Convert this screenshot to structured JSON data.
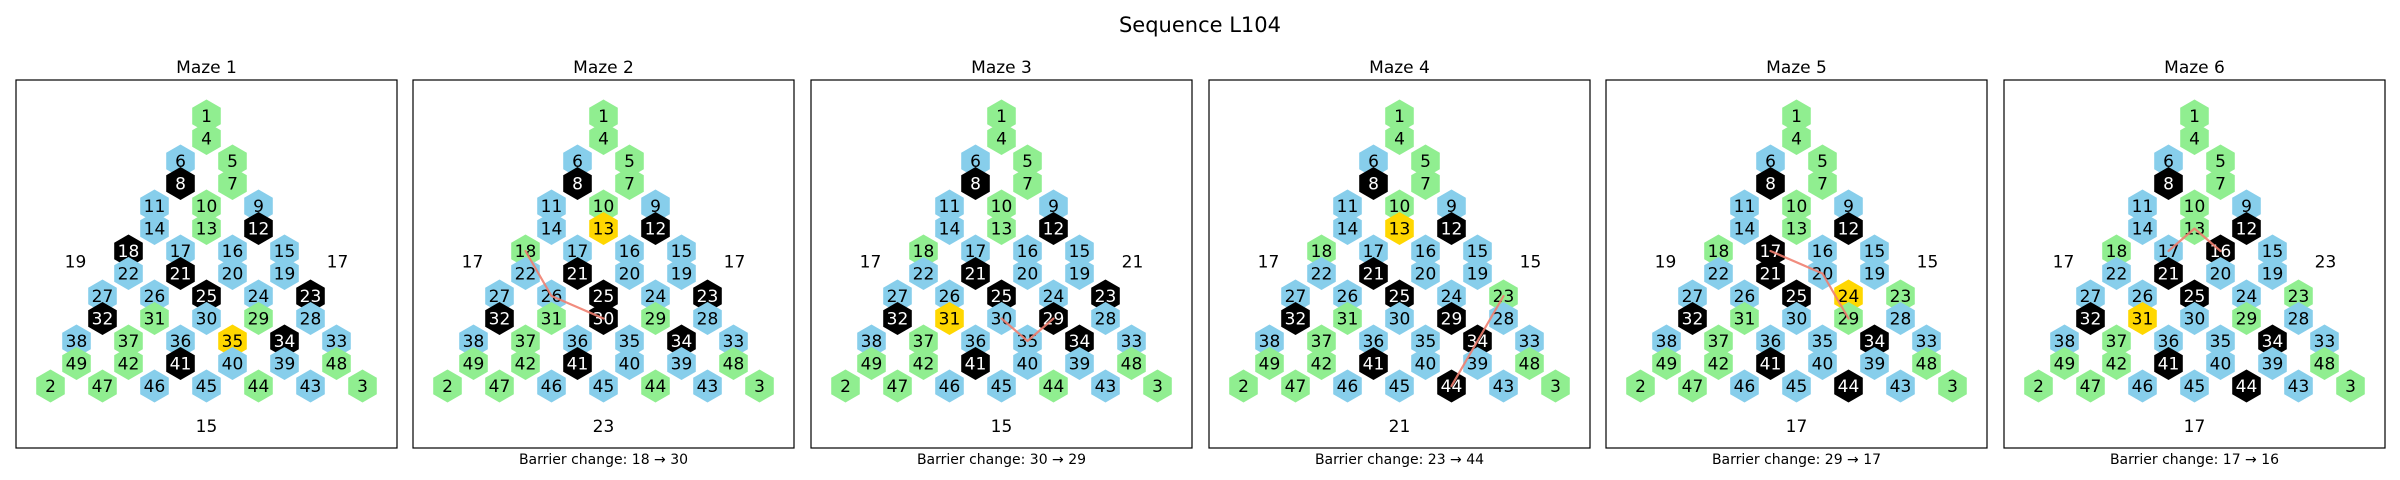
{
  "title": "Sequence L104",
  "colors": {
    "open_green": "#90EE90",
    "blue": "#87CEEB",
    "barrier_black": "#000000",
    "highlight_yellow": "#FFD700",
    "path_red": "#F08070"
  },
  "node_ids": [
    1,
    4,
    5,
    6,
    7,
    8,
    9,
    10,
    11,
    12,
    13,
    14,
    15,
    16,
    17,
    18,
    19,
    20,
    21,
    22,
    23,
    24,
    25,
    26,
    27,
    28,
    29,
    30,
    31,
    32,
    33,
    34,
    35,
    36,
    37,
    38,
    39,
    40,
    41,
    42,
    43,
    44,
    45,
    46,
    47,
    48,
    49,
    2,
    3
  ],
  "mazes": [
    {
      "title": "Maze 1",
      "left_label": "19",
      "right_label": "17",
      "bottom_label": "15",
      "caption": "",
      "yellow": [
        35
      ],
      "black": [
        8,
        12,
        18,
        21,
        23,
        25,
        32,
        34,
        41
      ],
      "path": []
    },
    {
      "title": "Maze 2",
      "left_label": "17",
      "right_label": "17",
      "bottom_label": "23",
      "caption": "Barrier change: 18 → 30",
      "yellow": [
        13
      ],
      "black": [
        8,
        12,
        21,
        23,
        25,
        30,
        32,
        34,
        41
      ],
      "path": [
        18,
        26,
        30
      ]
    },
    {
      "title": "Maze 3",
      "left_label": "17",
      "right_label": "21",
      "bottom_label": "15",
      "caption": "Barrier change: 30 → 29",
      "yellow": [
        31
      ],
      "black": [
        8,
        12,
        21,
        23,
        25,
        29,
        32,
        34,
        41
      ],
      "path": [
        30,
        35,
        29
      ]
    },
    {
      "title": "Maze 4",
      "left_label": "17",
      "right_label": "15",
      "bottom_label": "21",
      "caption": "Barrier change: 23 → 44",
      "yellow": [
        13
      ],
      "black": [
        8,
        12,
        21,
        25,
        29,
        32,
        34,
        41,
        44
      ],
      "path": [
        23,
        34,
        44
      ]
    },
    {
      "title": "Maze 5",
      "left_label": "19",
      "right_label": "15",
      "bottom_label": "17",
      "caption": "Barrier change: 29 → 17",
      "yellow": [
        24
      ],
      "black": [
        8,
        12,
        17,
        21,
        25,
        32,
        34,
        41,
        44
      ],
      "path": [
        17,
        20,
        29
      ]
    },
    {
      "title": "Maze 6",
      "left_label": "17",
      "right_label": "23",
      "bottom_label": "17",
      "caption": "Barrier change: 17 → 16",
      "yellow": [
        31
      ],
      "black": [
        8,
        12,
        16,
        21,
        25,
        32,
        34,
        41,
        44
      ],
      "path": [
        17,
        13,
        16
      ]
    }
  ]
}
